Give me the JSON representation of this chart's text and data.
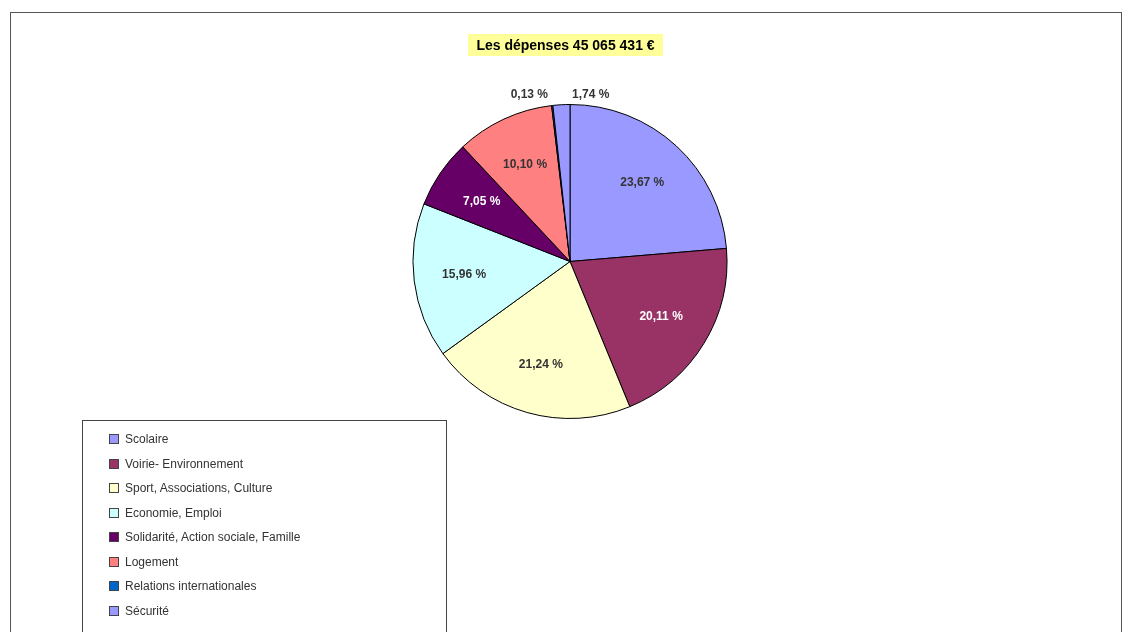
{
  "chart_data": {
    "type": "pie",
    "title": "Les dépenses 45 065 431 €",
    "categories": [
      "Scolaire",
      "Voirie- Environnement",
      "Sport, Associations, Culture",
      "Economie, Emploi",
      "Solidarité, Action sociale, Famille",
      "Logement",
      "Relations internationales",
      "Sécurité"
    ],
    "values": [
      23.67,
      20.11,
      21.24,
      15.96,
      7.05,
      10.1,
      0.13,
      1.74
    ],
    "value_labels": [
      "23,67 %",
      "20,11 %",
      "21,24 %",
      "15,96 %",
      "7,05 %",
      "10,10 %",
      "0,13 %",
      "1,74 %"
    ],
    "colors": [
      "#9999ff",
      "#993366",
      "#ffffcc",
      "#ccffff",
      "#660066",
      "#ff8080",
      "#0066cc",
      "#9999ff"
    ],
    "legend": "bottom left"
  }
}
